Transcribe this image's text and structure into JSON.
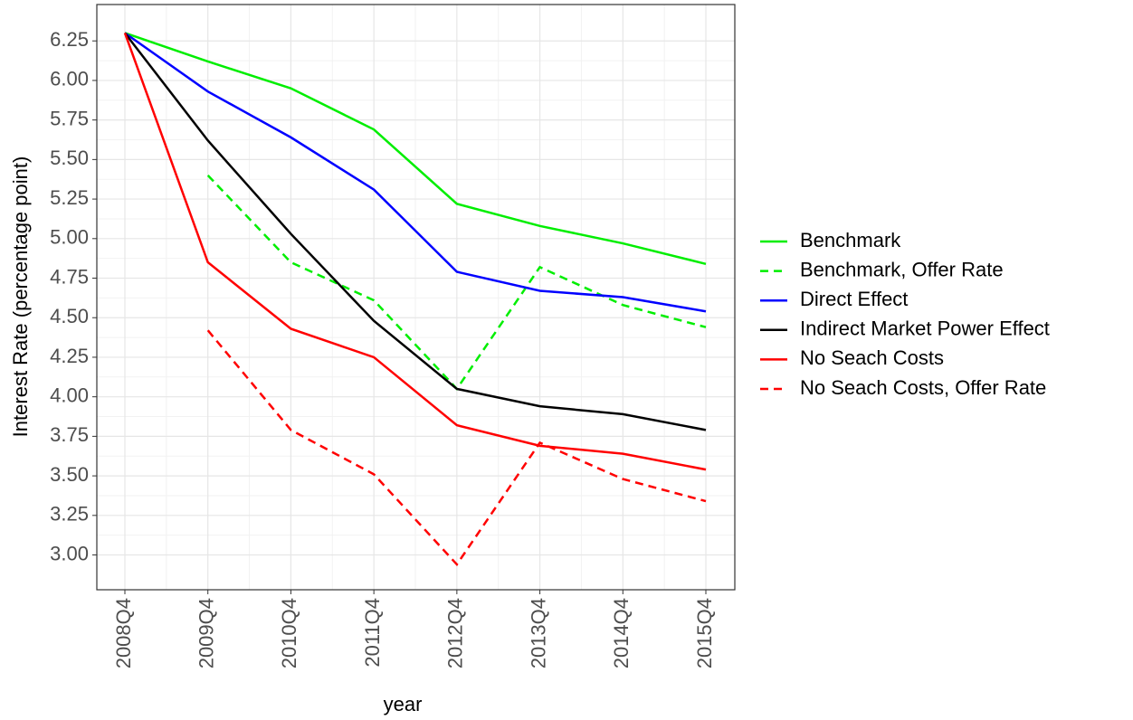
{
  "chart_data": {
    "type": "line",
    "xlabel": "year",
    "ylabel": "Interest Rate (percentage point)",
    "categories": [
      "2008Q4",
      "2009Q4",
      "2010Q4",
      "2011Q4",
      "2012Q4",
      "2013Q4",
      "2014Q4",
      "2015Q4"
    ],
    "series": [
      {
        "name": "Benchmark",
        "color": "#00ee00",
        "linestyle": "solid",
        "values": [
          6.3,
          6.12,
          5.95,
          5.69,
          5.22,
          5.08,
          4.97,
          4.84
        ]
      },
      {
        "name": "Benchmark, Offer Rate",
        "color": "#00ee00",
        "linestyle": "dashed",
        "values": [
          null,
          5.4,
          4.85,
          4.61,
          4.05,
          4.82,
          4.58,
          4.44
        ]
      },
      {
        "name": "Direct Effect",
        "color": "#0000ff",
        "linestyle": "solid",
        "values": [
          6.3,
          5.93,
          5.64,
          5.31,
          4.79,
          4.67,
          4.63,
          4.54
        ]
      },
      {
        "name": "Indirect Market Power Effect",
        "color": "#000000",
        "linestyle": "solid",
        "values": [
          6.3,
          5.62,
          5.03,
          4.48,
          4.05,
          3.94,
          3.89,
          3.79
        ]
      },
      {
        "name": "No Seach Costs",
        "color": "#ff0000",
        "linestyle": "solid",
        "values": [
          6.3,
          4.85,
          4.43,
          4.25,
          3.82,
          3.69,
          3.64,
          3.54
        ]
      },
      {
        "name": "No Seach Costs, Offer Rate",
        "color": "#ff0000",
        "linestyle": "dashed",
        "values": [
          null,
          4.42,
          3.79,
          3.51,
          2.94,
          3.71,
          3.48,
          3.34
        ]
      }
    ],
    "ylim": [
      2.78,
      6.48
    ],
    "yticks": [
      {
        "value": 3,
        "label": "3.00"
      },
      3.25,
      {
        "value": 3.5,
        "label": "3.50"
      },
      3.75,
      {
        "value": 4,
        "label": "4.00"
      },
      4.25,
      {
        "value": 4.5,
        "label": "4.50"
      },
      4.75,
      {
        "value": 5,
        "label": "5.00"
      },
      5.25,
      {
        "value": 5.5,
        "label": "5.50"
      },
      5.75,
      {
        "value": 6,
        "label": "6.00"
      },
      6.25
    ],
    "grid": true,
    "legend": "right"
  }
}
